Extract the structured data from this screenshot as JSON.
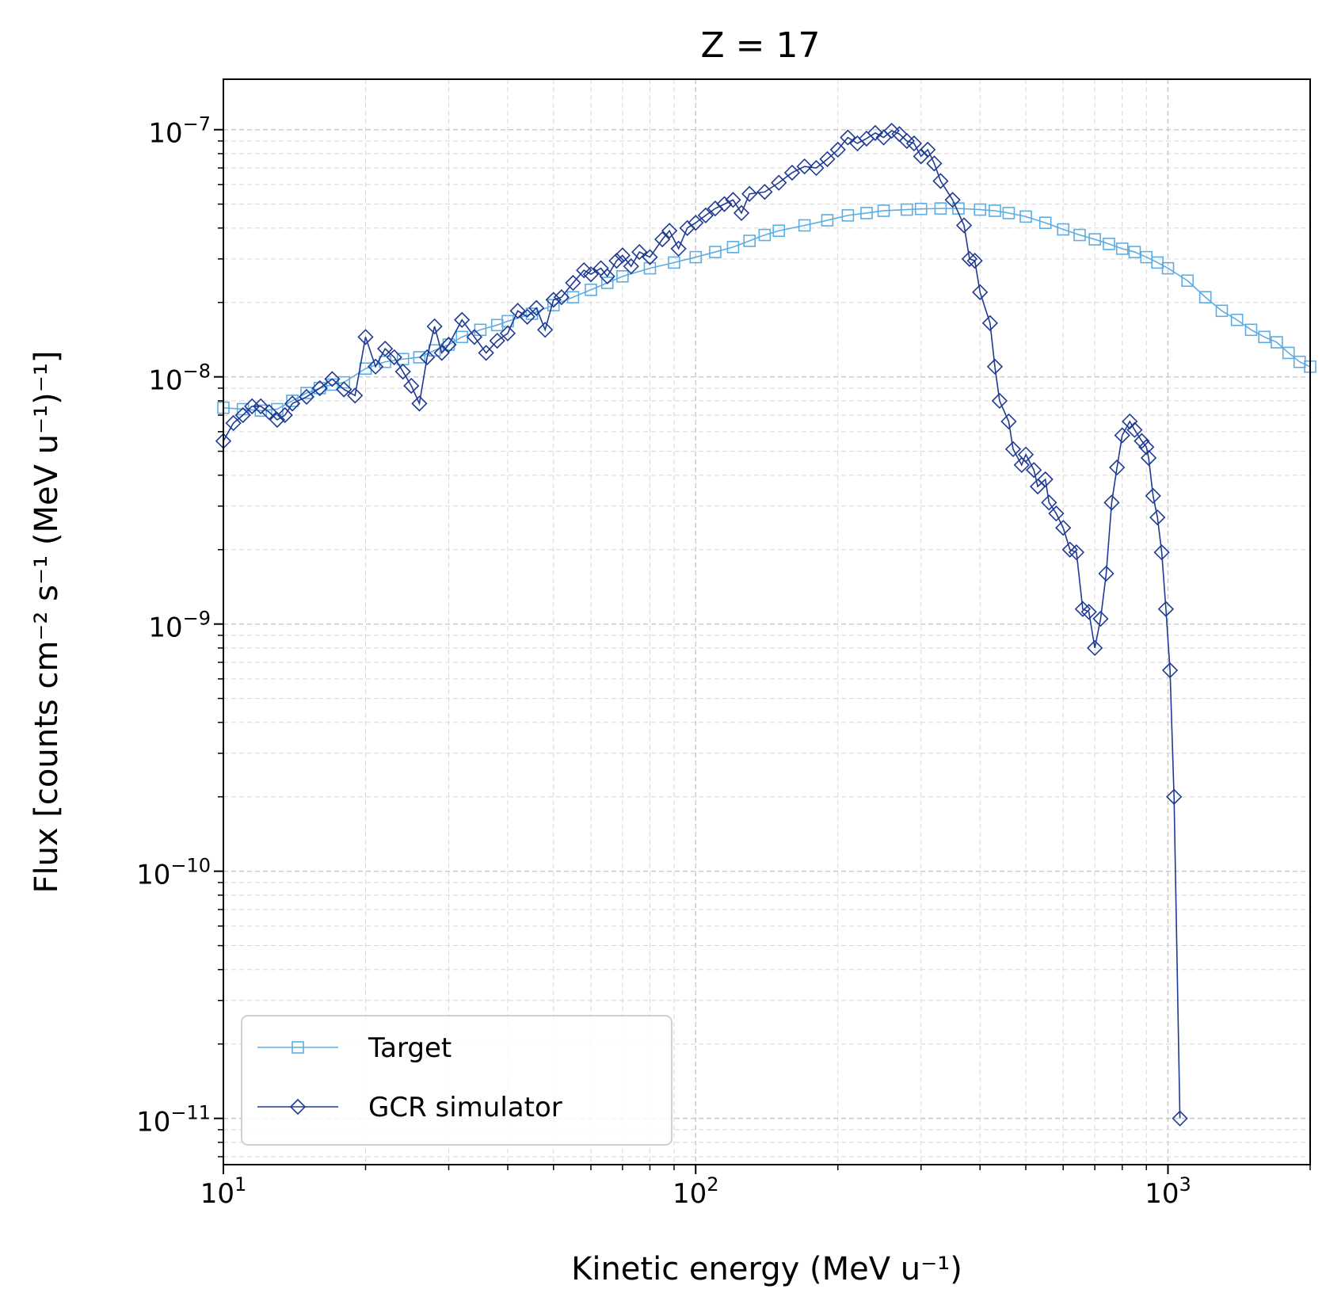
{
  "chart_data": {
    "type": "line",
    "title": "Z = 17",
    "xlabel": "Kinetic energy (MeV u⁻¹)",
    "ylabel": "Flux [counts cm⁻² s⁻¹ (MeV u⁻¹)⁻¹]",
    "x_scale": "log",
    "y_scale": "log",
    "xlim": [
      10,
      2000
    ],
    "ylim": [
      6.5e-12,
      1.6e-07
    ],
    "grid": true,
    "legend_position": "lower-left",
    "x_ticks": [
      {
        "value": 10,
        "base": "10",
        "exp": "1"
      },
      {
        "value": 100,
        "base": "10",
        "exp": "2"
      },
      {
        "value": 1000,
        "base": "10",
        "exp": "3"
      }
    ],
    "y_ticks": [
      {
        "value": 1e-07,
        "base": "10",
        "exp": "−7"
      },
      {
        "value": 1e-08,
        "base": "10",
        "exp": "−8"
      },
      {
        "value": 1e-09,
        "base": "10",
        "exp": "−9"
      },
      {
        "value": 1e-10,
        "base": "10",
        "exp": "−10"
      },
      {
        "value": 1e-11,
        "base": "10",
        "exp": "−11"
      }
    ],
    "series": [
      {
        "name": "Target",
        "color": "#5dade2",
        "marker": "square",
        "points": [
          [
            10,
            7.5e-09
          ],
          [
            11,
            7.4e-09
          ],
          [
            12,
            7.3e-09
          ],
          [
            13,
            7.4e-09
          ],
          [
            14,
            8e-09
          ],
          [
            15,
            8.6e-09
          ],
          [
            16,
            9e-09
          ],
          [
            17,
            9.3e-09
          ],
          [
            18,
            9.5e-09
          ],
          [
            20,
            1.08e-08
          ],
          [
            22,
            1.15e-08
          ],
          [
            24,
            1.18e-08
          ],
          [
            26,
            1.2e-08
          ],
          [
            28,
            1.28e-08
          ],
          [
            30,
            1.35e-08
          ],
          [
            32,
            1.45e-08
          ],
          [
            35,
            1.55e-08
          ],
          [
            38,
            1.62e-08
          ],
          [
            40,
            1.68e-08
          ],
          [
            45,
            1.8e-08
          ],
          [
            50,
            1.95e-08
          ],
          [
            55,
            2.1e-08
          ],
          [
            60,
            2.25e-08
          ],
          [
            65,
            2.4e-08
          ],
          [
            70,
            2.55e-08
          ],
          [
            80,
            2.75e-08
          ],
          [
            90,
            2.9e-08
          ],
          [
            100,
            3.05e-08
          ],
          [
            110,
            3.2e-08
          ],
          [
            120,
            3.35e-08
          ],
          [
            130,
            3.55e-08
          ],
          [
            140,
            3.75e-08
          ],
          [
            150,
            3.9e-08
          ],
          [
            170,
            4.1e-08
          ],
          [
            190,
            4.3e-08
          ],
          [
            210,
            4.5e-08
          ],
          [
            230,
            4.6e-08
          ],
          [
            250,
            4.7e-08
          ],
          [
            280,
            4.75e-08
          ],
          [
            300,
            4.78e-08
          ],
          [
            330,
            4.8e-08
          ],
          [
            360,
            4.8e-08
          ],
          [
            400,
            4.75e-08
          ],
          [
            430,
            4.7e-08
          ],
          [
            460,
            4.6e-08
          ],
          [
            500,
            4.45e-08
          ],
          [
            550,
            4.2e-08
          ],
          [
            600,
            3.95e-08
          ],
          [
            650,
            3.75e-08
          ],
          [
            700,
            3.6e-08
          ],
          [
            750,
            3.45e-08
          ],
          [
            800,
            3.3e-08
          ],
          [
            850,
            3.2e-08
          ],
          [
            900,
            3.05e-08
          ],
          [
            950,
            2.9e-08
          ],
          [
            1000,
            2.75e-08
          ],
          [
            1100,
            2.45e-08
          ],
          [
            1200,
            2.1e-08
          ],
          [
            1300,
            1.85e-08
          ],
          [
            1400,
            1.7e-08
          ],
          [
            1500,
            1.55e-08
          ],
          [
            1600,
            1.45e-08
          ],
          [
            1700,
            1.38e-08
          ],
          [
            1800,
            1.25e-08
          ],
          [
            1900,
            1.15e-08
          ],
          [
            2000,
            1.1e-08
          ]
        ]
      },
      {
        "name": "GCR simulator",
        "color": "#1f3a93",
        "marker": "diamond",
        "points": [
          [
            10,
            5.5e-09
          ],
          [
            10.5,
            6.5e-09
          ],
          [
            11,
            7e-09
          ],
          [
            11.5,
            7.6e-09
          ],
          [
            12,
            7.6e-09
          ],
          [
            12.5,
            7.2e-09
          ],
          [
            13,
            6.7e-09
          ],
          [
            13.5,
            7e-09
          ],
          [
            14,
            7.8e-09
          ],
          [
            15,
            8.3e-09
          ],
          [
            16,
            9e-09
          ],
          [
            17,
            9.8e-09
          ],
          [
            18,
            8.9e-09
          ],
          [
            19,
            8.4e-09
          ],
          [
            20,
            1.45e-08
          ],
          [
            21,
            1.1e-08
          ],
          [
            22,
            1.3e-08
          ],
          [
            23,
            1.2e-08
          ],
          [
            24,
            1.05e-08
          ],
          [
            25,
            9.2e-09
          ],
          [
            26,
            7.8e-09
          ],
          [
            27,
            1.2e-08
          ],
          [
            28,
            1.6e-08
          ],
          [
            29,
            1.25e-08
          ],
          [
            30,
            1.35e-08
          ],
          [
            32,
            1.7e-08
          ],
          [
            34,
            1.45e-08
          ],
          [
            36,
            1.25e-08
          ],
          [
            38,
            1.4e-08
          ],
          [
            40,
            1.5e-08
          ],
          [
            42,
            1.85e-08
          ],
          [
            44,
            1.75e-08
          ],
          [
            46,
            1.9e-08
          ],
          [
            48,
            1.55e-08
          ],
          [
            50,
            2.05e-08
          ],
          [
            52,
            2.1e-08
          ],
          [
            55,
            2.4e-08
          ],
          [
            58,
            2.7e-08
          ],
          [
            60,
            2.6e-08
          ],
          [
            63,
            2.75e-08
          ],
          [
            65,
            2.55e-08
          ],
          [
            68,
            2.95e-08
          ],
          [
            70,
            3.1e-08
          ],
          [
            73,
            2.8e-08
          ],
          [
            76,
            3.2e-08
          ],
          [
            80,
            3.05e-08
          ],
          [
            85,
            3.6e-08
          ],
          [
            88,
            3.9e-08
          ],
          [
            92,
            3.3e-08
          ],
          [
            96,
            4e-08
          ],
          [
            100,
            4.2e-08
          ],
          [
            105,
            4.5e-08
          ],
          [
            110,
            4.8e-08
          ],
          [
            115,
            5e-08
          ],
          [
            120,
            5.2e-08
          ],
          [
            125,
            4.6e-08
          ],
          [
            130,
            5.5e-08
          ],
          [
            140,
            5.6e-08
          ],
          [
            150,
            6.1e-08
          ],
          [
            160,
            6.7e-08
          ],
          [
            170,
            7.1e-08
          ],
          [
            180,
            7e-08
          ],
          [
            190,
            7.6e-08
          ],
          [
            200,
            8.3e-08
          ],
          [
            210,
            9.3e-08
          ],
          [
            220,
            8.8e-08
          ],
          [
            230,
            9.2e-08
          ],
          [
            240,
            9.7e-08
          ],
          [
            250,
            9.3e-08
          ],
          [
            260,
            9.9e-08
          ],
          [
            270,
            9.6e-08
          ],
          [
            280,
            9e-08
          ],
          [
            290,
            8.8e-08
          ],
          [
            300,
            7.8e-08
          ],
          [
            310,
            8.3e-08
          ],
          [
            320,
            7.3e-08
          ],
          [
            330,
            6.2e-08
          ],
          [
            350,
            5.2e-08
          ],
          [
            370,
            4.1e-08
          ],
          [
            380,
            3e-08
          ],
          [
            390,
            2.95e-08
          ],
          [
            400,
            2.2e-08
          ],
          [
            420,
            1.65e-08
          ],
          [
            430,
            1.1e-08
          ],
          [
            440,
            8e-09
          ],
          [
            460,
            6.6e-09
          ],
          [
            470,
            5.1e-09
          ],
          [
            490,
            4.4e-09
          ],
          [
            500,
            4.85e-09
          ],
          [
            520,
            4.2e-09
          ],
          [
            530,
            3.6e-09
          ],
          [
            550,
            3.85e-09
          ],
          [
            560,
            3.1e-09
          ],
          [
            580,
            2.8e-09
          ],
          [
            600,
            2.45e-09
          ],
          [
            620,
            2e-09
          ],
          [
            640,
            1.95e-09
          ],
          [
            660,
            1.15e-09
          ],
          [
            680,
            1.12e-09
          ],
          [
            700,
            8e-10
          ],
          [
            720,
            1.05e-09
          ],
          [
            740,
            1.6e-09
          ],
          [
            760,
            3.1e-09
          ],
          [
            780,
            4.3e-09
          ],
          [
            800,
            5.8e-09
          ],
          [
            830,
            6.6e-09
          ],
          [
            850,
            6.1e-09
          ],
          [
            880,
            5.5e-09
          ],
          [
            900,
            5.2e-09
          ],
          [
            910,
            4.7e-09
          ],
          [
            930,
            3.3e-09
          ],
          [
            950,
            2.7e-09
          ],
          [
            970,
            1.95e-09
          ],
          [
            990,
            1.15e-09
          ],
          [
            1010,
            6.5e-10
          ],
          [
            1030,
            2e-10
          ],
          [
            1060,
            1e-11
          ]
        ]
      }
    ]
  }
}
